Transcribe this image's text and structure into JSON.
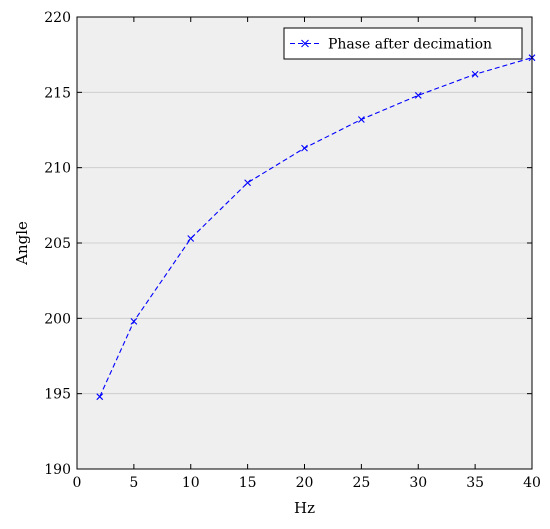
{
  "chart_data": {
    "type": "line",
    "xlabel": "Hz",
    "ylabel": "Angle",
    "xlim": [
      0,
      40
    ],
    "ylim": [
      190,
      220
    ],
    "x_ticks": [
      0,
      5,
      10,
      15,
      20,
      25,
      30,
      35,
      40
    ],
    "y_ticks": [
      190,
      195,
      200,
      205,
      210,
      215,
      220
    ],
    "grid": "horizontal",
    "legend_position": "top-right",
    "colors": {
      "plot_background": "#efefef",
      "grid": "#c8c8c8",
      "series": "#0000ff"
    },
    "series": [
      {
        "name": "Phase after decimation",
        "line_style": "dashed",
        "marker": "x",
        "x": [
          2,
          5,
          10,
          15,
          20,
          25,
          30,
          35,
          40
        ],
        "y": [
          194.8,
          199.8,
          205.3,
          209.0,
          211.3,
          213.2,
          214.8,
          216.2,
          217.3
        ]
      }
    ]
  }
}
